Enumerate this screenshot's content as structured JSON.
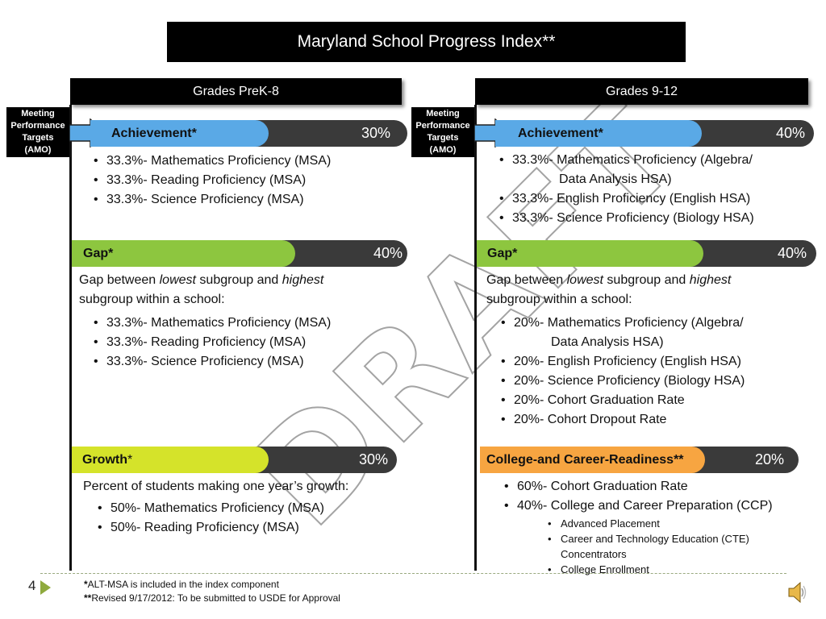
{
  "title": "Maryland School Progress Index**",
  "watermark": "DRAFT",
  "colors": {
    "achievement": "#5aa9e6",
    "gap": "#8dc63f",
    "growth": "#d5e32a",
    "ccr": "#f7a541",
    "bar_track": "#3a3a3a"
  },
  "left": {
    "header": "Grades PreK-8",
    "amo": [
      "Meeting",
      "Performance",
      "Targets",
      "(AMO)"
    ],
    "achievement": {
      "label": "Achievement*",
      "pct": "30%",
      "items": [
        "33.3%- Mathematics Proficiency (MSA)",
        "33.3%- Reading Proficiency (MSA)",
        "33.3%- Science Proficiency (MSA)"
      ]
    },
    "gap": {
      "label": "Gap*",
      "pct": "40%",
      "intro_1": "Gap between ",
      "intro_lowest": "lowest",
      "intro_2": " subgroup and ",
      "intro_highest": "highest",
      "intro_3": "subgroup within a school:",
      "items": [
        "33.3%- Mathematics Proficiency (MSA)",
        "33.3%- Reading Proficiency (MSA)",
        "33.3%- Science Proficiency (MSA)"
      ]
    },
    "growth": {
      "label": "Growth",
      "label_star": "*",
      "pct": "30%",
      "intro": "Percent of students making one year’s growth:",
      "items": [
        "50%- Mathematics Proficiency (MSA)",
        "50%- Reading Proficiency (MSA)"
      ]
    }
  },
  "right": {
    "header": "Grades 9-12",
    "amo": [
      "Meeting",
      "Performance",
      "Targets",
      "(AMO)"
    ],
    "achievement": {
      "label": "Achievement*",
      "pct": "40%",
      "item1_a": "33.3%- Mathematics Proficiency (Algebra/",
      "item1_b": "Data Analysis HSA)",
      "item2": "33.3%- English Proficiency (English HSA)",
      "item3": "33.3%- Science Proficiency (Biology HSA)"
    },
    "gap": {
      "label": "Gap*",
      "pct": "40%",
      "intro_1": "Gap between ",
      "intro_lowest": "lowest",
      "intro_2": " subgroup and ",
      "intro_highest": "highest",
      "intro_3": "subgroup within a school:",
      "item1_a": "20%- Mathematics Proficiency (Algebra/",
      "item1_b": "Data Analysis HSA)",
      "items": [
        "20%- English Proficiency (English HSA)",
        "20%- Science Proficiency (Biology HSA)",
        "20%- Cohort Graduation Rate",
        "20%- Cohort Dropout Rate"
      ]
    },
    "ccr": {
      "label": "College-and Career-Readiness**",
      "pct": "20%",
      "item1": "60%- Cohort Graduation Rate",
      "item2": "40%- College and Career Preparation (CCP)",
      "sub": [
        "Advanced Placement",
        "Career and Technology Education (CTE)",
        "Concentrators",
        "College Enrollment"
      ]
    }
  },
  "footer": {
    "page": "4",
    "note1_mark": "*",
    "note1": "ALT-MSA is included in the index component",
    "note2_mark": "**",
    "note2": "Revised  9/17/2012: To be submitted to USDE for Approval"
  }
}
